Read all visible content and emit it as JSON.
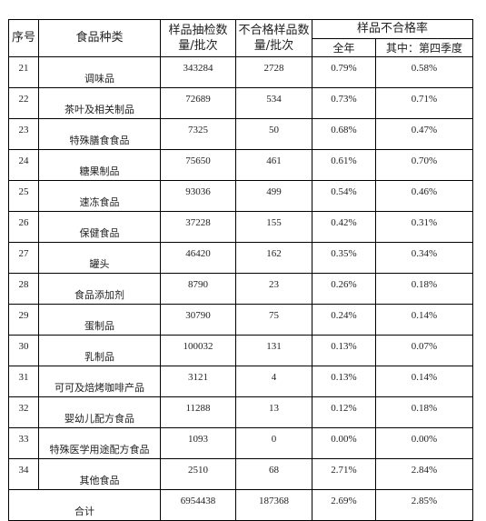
{
  "headers": {
    "index": "序号",
    "category": "食品种类",
    "sampled": "样品抽检数量/批次",
    "failed": "不合格样品数量/批次",
    "rate_group": "样品不合格率",
    "rate_year": "全年",
    "rate_q4": "其中：第四季度"
  },
  "rows": [
    {
      "index": "21",
      "category": "调味品",
      "sampled": "343284",
      "failed": "2728",
      "rate_year": "0.79%",
      "rate_q4": "0.58%"
    },
    {
      "index": "22",
      "category": "茶叶及相关制品",
      "sampled": "72689",
      "failed": "534",
      "rate_year": "0.73%",
      "rate_q4": "0.71%"
    },
    {
      "index": "23",
      "category": "特殊膳食食品",
      "sampled": "7325",
      "failed": "50",
      "rate_year": "0.68%",
      "rate_q4": "0.47%"
    },
    {
      "index": "24",
      "category": "糖果制品",
      "sampled": "75650",
      "failed": "461",
      "rate_year": "0.61%",
      "rate_q4": "0.70%"
    },
    {
      "index": "25",
      "category": "速冻食品",
      "sampled": "93036",
      "failed": "499",
      "rate_year": "0.54%",
      "rate_q4": "0.46%"
    },
    {
      "index": "26",
      "category": "保健食品",
      "sampled": "37228",
      "failed": "155",
      "rate_year": "0.42%",
      "rate_q4": "0.31%"
    },
    {
      "index": "27",
      "category": "罐头",
      "sampled": "46420",
      "failed": "162",
      "rate_year": "0.35%",
      "rate_q4": "0.34%"
    },
    {
      "index": "28",
      "category": "食品添加剂",
      "sampled": "8790",
      "failed": "23",
      "rate_year": "0.26%",
      "rate_q4": "0.18%"
    },
    {
      "index": "29",
      "category": "蛋制品",
      "sampled": "30790",
      "failed": "75",
      "rate_year": "0.24%",
      "rate_q4": "0.14%"
    },
    {
      "index": "30",
      "category": "乳制品",
      "sampled": "100032",
      "failed": "131",
      "rate_year": "0.13%",
      "rate_q4": "0.07%"
    },
    {
      "index": "31",
      "category": "可可及焙烤咖啡产品",
      "sampled": "3121",
      "failed": "4",
      "rate_year": "0.13%",
      "rate_q4": "0.14%"
    },
    {
      "index": "32",
      "category": "婴幼儿配方食品",
      "sampled": "11288",
      "failed": "13",
      "rate_year": "0.12%",
      "rate_q4": "0.18%"
    },
    {
      "index": "33",
      "category": "特殊医学用途配方食品",
      "sampled": "1093",
      "failed": "0",
      "rate_year": "0.00%",
      "rate_q4": "0.00%"
    },
    {
      "index": "34",
      "category": "其他食品",
      "sampled": "2510",
      "failed": "68",
      "rate_year": "2.71%",
      "rate_q4": "2.84%"
    }
  ],
  "total": {
    "label": "合计",
    "sampled": "6954438",
    "failed": "187368",
    "rate_year": "2.69%",
    "rate_q4": "2.85%"
  }
}
